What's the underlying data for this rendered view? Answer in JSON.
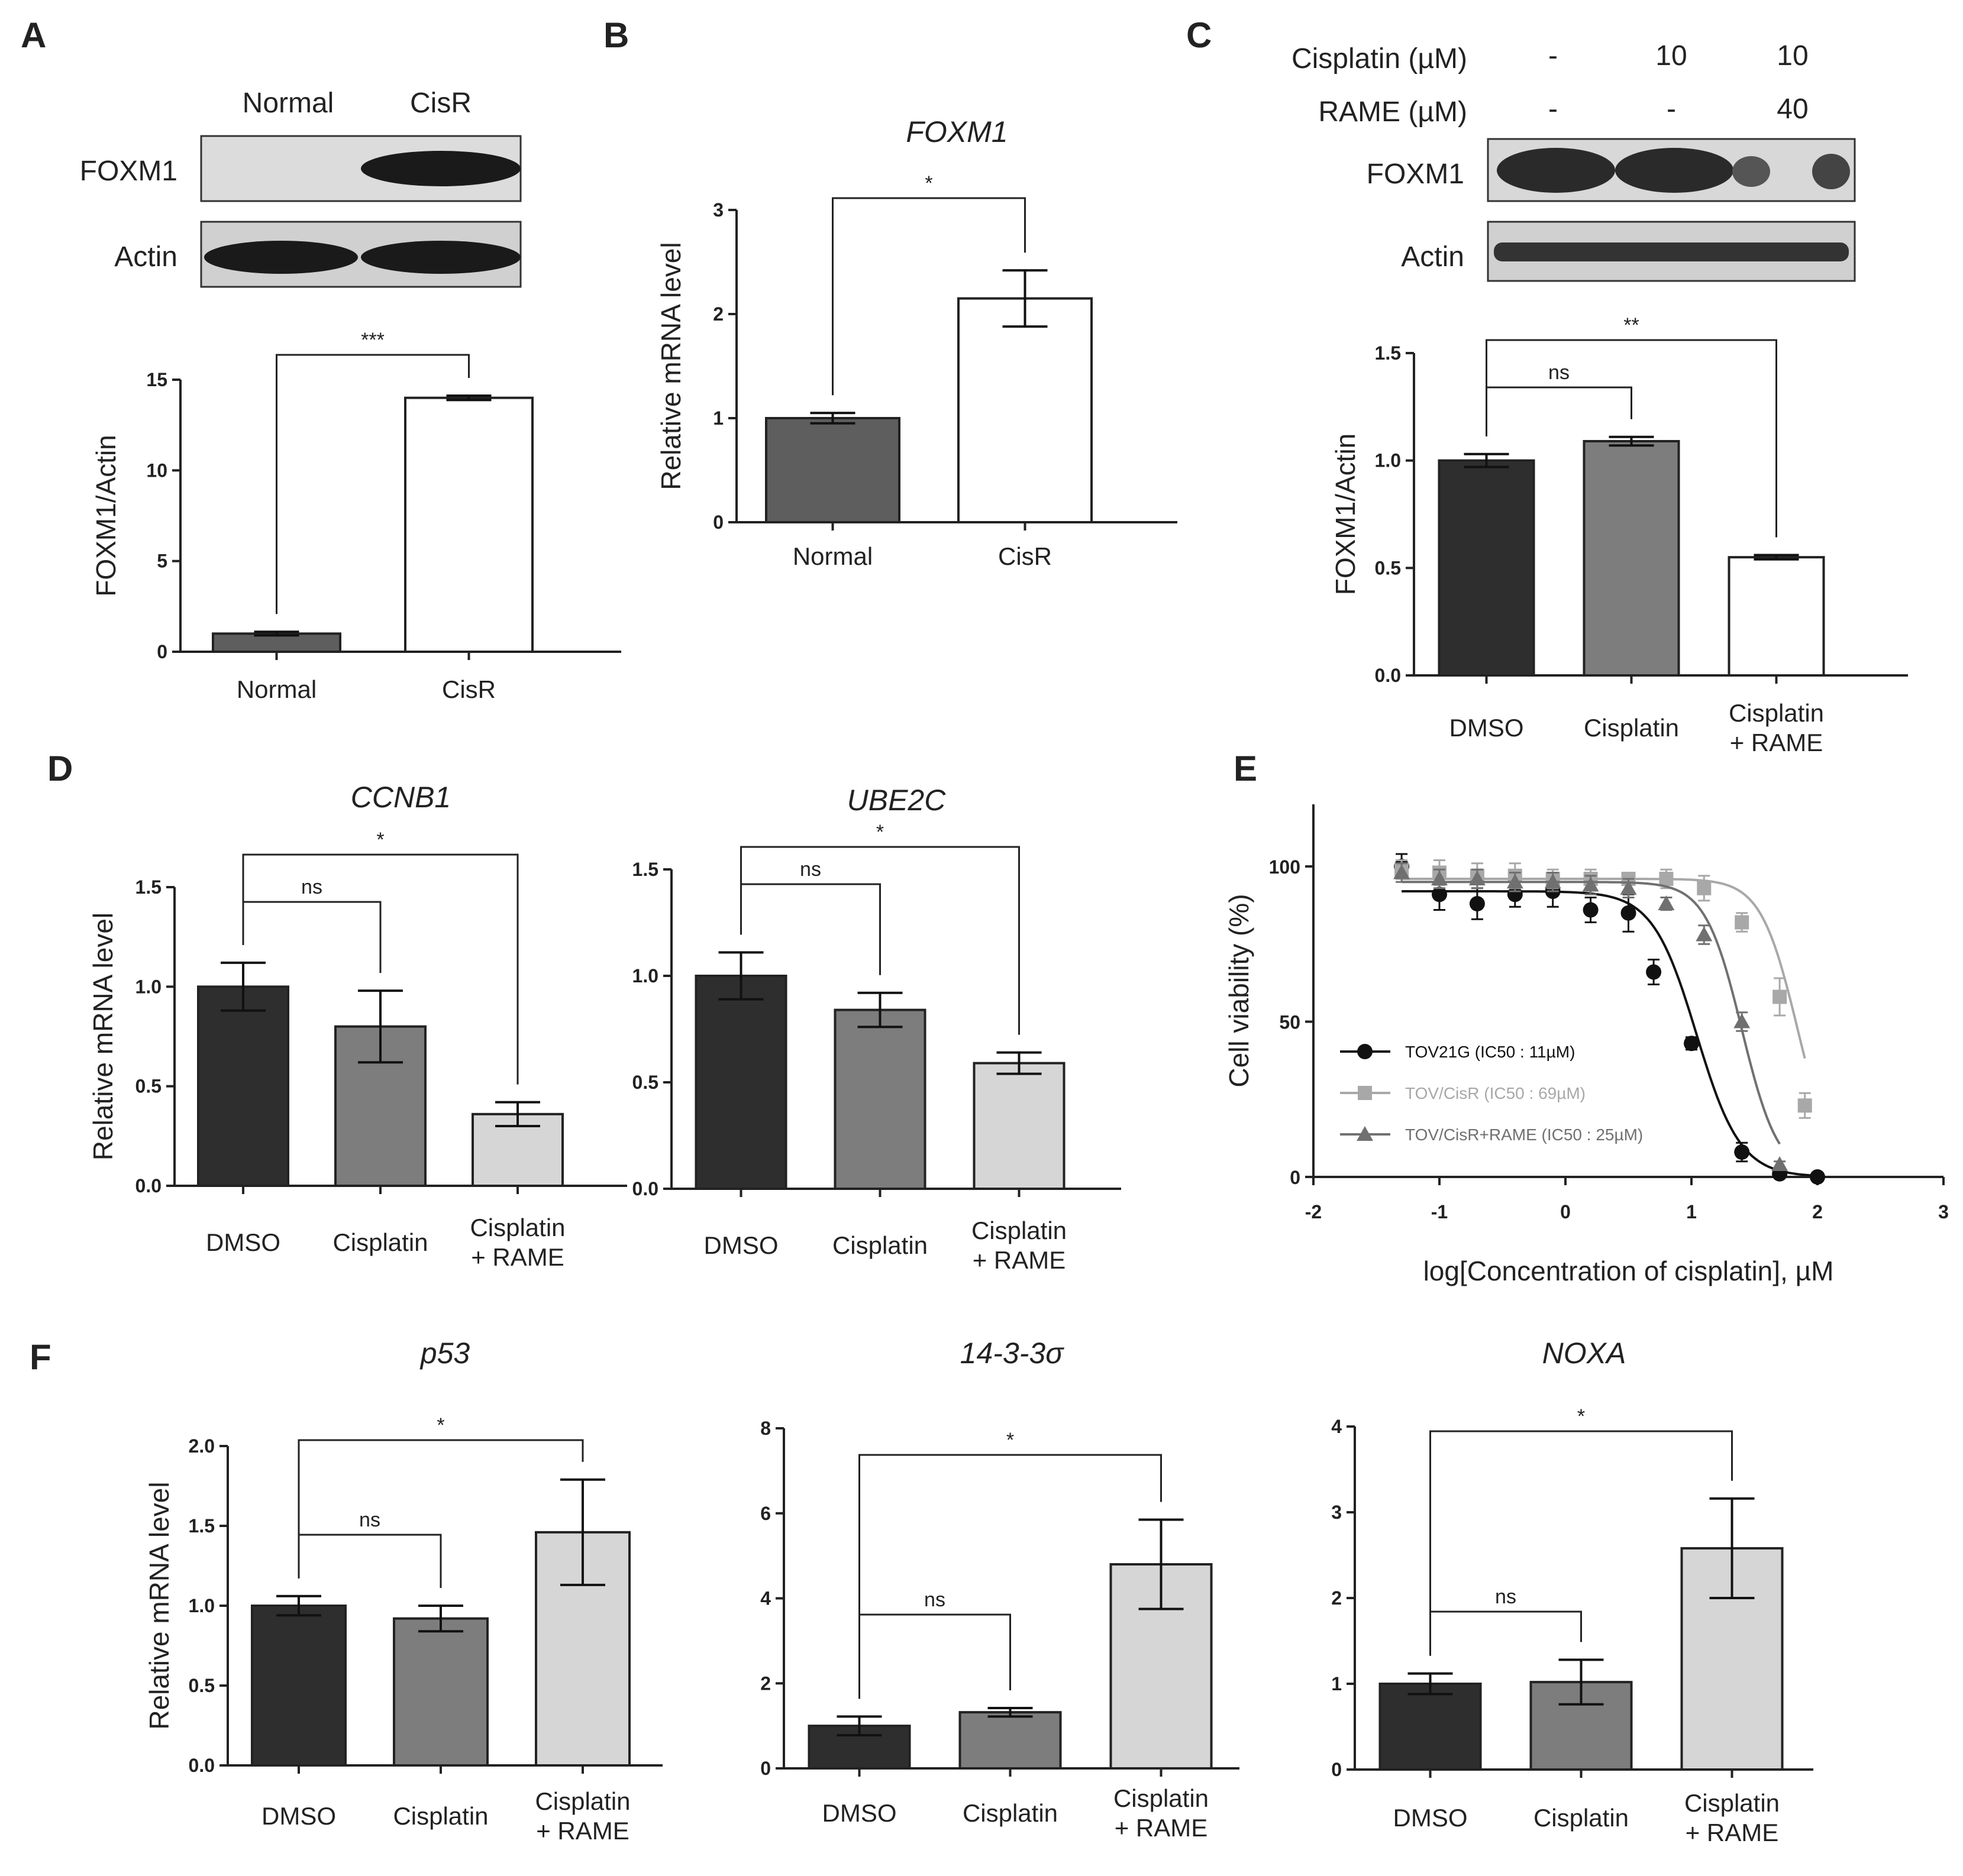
{
  "panels": {
    "A": {
      "letter": "A",
      "blot_cols": [
        "Normal",
        "CisR"
      ],
      "blot_rows": [
        "FOXM1",
        "Actin"
      ]
    },
    "B": {
      "letter": "B"
    },
    "C": {
      "letter": "C",
      "treat_labels": [
        "Cisplatin (µM)",
        "RAME (µM)"
      ],
      "treat_values": [
        [
          "-",
          "10",
          "10"
        ],
        [
          "-",
          "-",
          "40"
        ]
      ],
      "blot_rows": [
        "FOXM1",
        "Actin"
      ]
    },
    "D": {
      "letter": "D"
    },
    "E": {
      "letter": "E"
    },
    "F": {
      "letter": "F"
    }
  },
  "colors": {
    "black": "#2e2e2e",
    "dark": "#5e5e5e",
    "mid": "#7d7d7d",
    "light": "#d6d6d6",
    "white": "#ffffff",
    "curve1": "#111111",
    "curve2": "#a8a8a8",
    "curve3": "#707070"
  },
  "chart_data": [
    {
      "id": "A",
      "type": "bar",
      "title": "",
      "ylabel": "FOXM1/Actin",
      "categories": [
        "Normal",
        "CisR"
      ],
      "values": [
        1.0,
        14.0
      ],
      "errors": [
        0.1,
        0.12
      ],
      "ylim": [
        0,
        15
      ],
      "yticks": [
        "0",
        "5",
        "10",
        "15"
      ],
      "fills": [
        "dark",
        "white"
      ],
      "sig": [
        {
          "from": 0,
          "to": 1,
          "label": "***"
        }
      ]
    },
    {
      "id": "B",
      "type": "bar",
      "title": "FOXM1",
      "ylabel": "Relative  mRNA  level",
      "categories": [
        "Normal",
        "CisR"
      ],
      "values": [
        1.0,
        2.15
      ],
      "errors": [
        0.05,
        0.27
      ],
      "ylim": [
        0,
        3
      ],
      "yticks": [
        "0",
        "1",
        "2",
        "3"
      ],
      "fills": [
        "dark",
        "white"
      ],
      "sig": [
        {
          "from": 0,
          "to": 1,
          "label": "*"
        }
      ]
    },
    {
      "id": "C",
      "type": "bar",
      "title": "",
      "ylabel": "FOXM1/Actin",
      "categories": [
        "DMSO",
        "Cisplatin",
        "Cisplatin\n+ RAME"
      ],
      "values": [
        1.0,
        1.09,
        0.55
      ],
      "errors": [
        0.03,
        0.02,
        0.01
      ],
      "ylim": [
        0,
        1.5
      ],
      "yticks": [
        "0.0",
        "0.5",
        "1.0",
        "1.5"
      ],
      "fills": [
        "black",
        "mid",
        "white"
      ],
      "sig": [
        {
          "from": 0,
          "to": 1,
          "label": "ns"
        },
        {
          "from": 0,
          "to": 2,
          "label": "**"
        }
      ]
    },
    {
      "id": "D1",
      "type": "bar",
      "title": "CCNB1",
      "ylabel": "Relative  mRNA  level",
      "categories": [
        "DMSO",
        "Cisplatin",
        "Cisplatin\n+ RAME"
      ],
      "values": [
        1.0,
        0.8,
        0.36
      ],
      "errors": [
        0.12,
        0.18,
        0.06
      ],
      "ylim": [
        0,
        1.5
      ],
      "yticks": [
        "0.0",
        "0.5",
        "1.0",
        "1.5"
      ],
      "fills": [
        "black",
        "mid",
        "light"
      ],
      "sig": [
        {
          "from": 0,
          "to": 1,
          "label": "ns"
        },
        {
          "from": 0,
          "to": 2,
          "label": "*"
        }
      ]
    },
    {
      "id": "D2",
      "type": "bar",
      "title": "UBE2C",
      "ylabel": "",
      "categories": [
        "DMSO",
        "Cisplatin",
        "Cisplatin\n+ RAME"
      ],
      "values": [
        1.0,
        0.84,
        0.59
      ],
      "errors": [
        0.11,
        0.08,
        0.05
      ],
      "ylim": [
        0,
        1.5
      ],
      "yticks": [
        "0.0",
        "0.5",
        "1.0",
        "1.5"
      ],
      "fills": [
        "black",
        "mid",
        "light"
      ],
      "sig": [
        {
          "from": 0,
          "to": 1,
          "label": "ns"
        },
        {
          "from": 0,
          "to": 2,
          "label": "*"
        }
      ]
    },
    {
      "id": "E",
      "type": "line",
      "title": "",
      "xlabel": "log[Concentration of cisplatin], µM",
      "ylabel": "Cell viability (%)",
      "xlim": [
        -2,
        3
      ],
      "ylim": [
        0,
        120
      ],
      "xticks": [
        "-2",
        "-1",
        "0",
        "1",
        "2",
        "3"
      ],
      "yticks": [
        "0",
        "50",
        "100"
      ],
      "series": [
        {
          "name": "TOV21G (IC50 : 11µM)",
          "marker": "circle",
          "color": "curve1",
          "top": 92,
          "bottom": 0,
          "logIC50": 1.04,
          "hill": 2.5,
          "x": [
            -1.3,
            -1.0,
            -0.7,
            -0.4,
            -0.1,
            0.2,
            0.5,
            0.7,
            1.0,
            1.4,
            1.7,
            2.0
          ],
          "y": [
            100,
            91,
            88,
            91,
            92,
            86,
            85,
            66,
            43,
            8,
            1,
            0
          ],
          "err": [
            4,
            5,
            5,
            4,
            5,
            4,
            6,
            4,
            2,
            3,
            1,
            1
          ]
        },
        {
          "name": "TOV/CisR (IC50 : 69µM)",
          "marker": "square",
          "color": "curve2",
          "top": 96,
          "bottom": 0,
          "logIC50": 1.84,
          "hill": 3,
          "x": [
            -1.3,
            -1.0,
            -0.7,
            -0.4,
            -0.1,
            0.2,
            0.5,
            0.8,
            1.1,
            1.4,
            1.7,
            1.9
          ],
          "y": [
            99,
            98,
            97,
            97,
            96,
            96,
            96,
            96,
            93,
            82,
            58,
            23
          ],
          "err": [
            3,
            4,
            4,
            4,
            3,
            3,
            2,
            3,
            4,
            3,
            6,
            4
          ]
        },
        {
          "name": "TOV/CisR+RAME (IC50 : 25µM)",
          "marker": "triangle",
          "color": "curve3",
          "top": 95,
          "bottom": 0,
          "logIC50": 1.4,
          "hill": 3,
          "x": [
            -1.3,
            -1.0,
            -0.7,
            -0.4,
            -0.1,
            0.2,
            0.5,
            0.8,
            1.1,
            1.4,
            1.7
          ],
          "y": [
            98,
            96,
            96,
            95,
            95,
            94,
            93,
            88,
            78,
            50,
            4
          ],
          "err": [
            3,
            3,
            3,
            3,
            3,
            3,
            3,
            2,
            3,
            3,
            1
          ]
        }
      ]
    },
    {
      "id": "F1",
      "type": "bar",
      "title": "p53",
      "ylabel": "Relative  mRNA  level",
      "categories": [
        "DMSO",
        "Cisplatin",
        "Cisplatin\n+ RAME"
      ],
      "values": [
        1.0,
        0.92,
        1.46
      ],
      "errors": [
        0.06,
        0.08,
        0.33
      ],
      "ylim": [
        0,
        2.0
      ],
      "yticks": [
        "0.0",
        "0.5",
        "1.0",
        "1.5",
        "2.0"
      ],
      "fills": [
        "black",
        "mid",
        "light"
      ],
      "sig": [
        {
          "from": 0,
          "to": 1,
          "label": "ns"
        },
        {
          "from": 0,
          "to": 2,
          "label": "*"
        }
      ]
    },
    {
      "id": "F2",
      "type": "bar",
      "title": "14-3-3σ",
      "ylabel": "",
      "categories": [
        "DMSO",
        "Cisplatin",
        "Cisplatin\n+ RAME"
      ],
      "values": [
        1.0,
        1.32,
        4.8
      ],
      "errors": [
        0.22,
        0.1,
        1.05
      ],
      "ylim": [
        0,
        8
      ],
      "yticks": [
        "0",
        "2",
        "4",
        "6",
        "8"
      ],
      "fills": [
        "black",
        "mid",
        "light"
      ],
      "sig": [
        {
          "from": 0,
          "to": 1,
          "label": "ns"
        },
        {
          "from": 0,
          "to": 2,
          "label": "*"
        }
      ]
    },
    {
      "id": "F3",
      "type": "bar",
      "title": "NOXA",
      "ylabel": "",
      "categories": [
        "DMSO",
        "Cisplatin",
        "Cisplatin\n+ RAME"
      ],
      "values": [
        1.0,
        1.02,
        2.58
      ],
      "errors": [
        0.12,
        0.26,
        0.58
      ],
      "ylim": [
        0,
        4
      ],
      "yticks": [
        "0",
        "1",
        "2",
        "3",
        "4"
      ],
      "fills": [
        "black",
        "mid",
        "light"
      ],
      "sig": [
        {
          "from": 0,
          "to": 1,
          "label": "ns"
        },
        {
          "from": 0,
          "to": 2,
          "label": "*"
        }
      ]
    }
  ]
}
